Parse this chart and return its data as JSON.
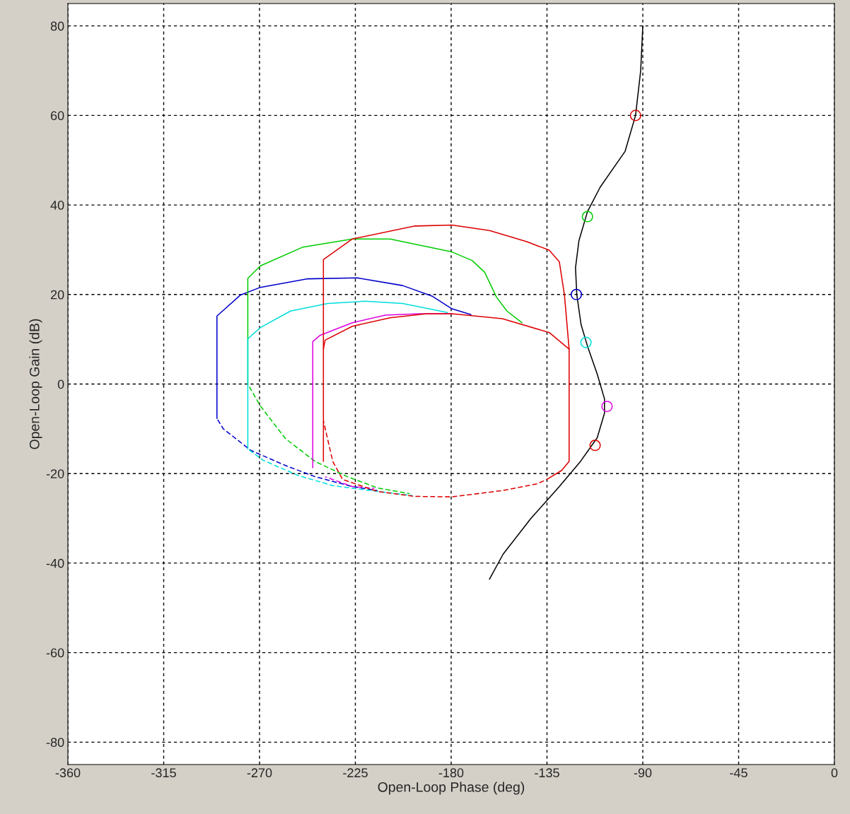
{
  "chart_data": {
    "type": "line",
    "xlabel": "Open-Loop Phase (deg)",
    "ylabel": "Open-Loop Gain (dB)",
    "xlim": [
      -360,
      0
    ],
    "ylim": [
      -85,
      85
    ],
    "xticks": [
      -360,
      -315,
      -270,
      -225,
      -180,
      -135,
      -90,
      -45,
      0
    ],
    "yticks": [
      -80,
      -60,
      -40,
      -20,
      0,
      20,
      40,
      60,
      80
    ],
    "grid": true,
    "legend": false,
    "series": [
      {
        "color": "#000000",
        "line_style": "solid",
        "marker": "none",
        "x": [
          -90,
          -91,
          -93.4,
          -98.3,
          -110,
          -116,
          -120,
          -121.6,
          -121,
          -119,
          -116,
          -111.4,
          -108,
          -108,
          -111.4,
          -119.6,
          -129.4,
          -142.5,
          -155.6,
          -162
        ],
        "values": [
          80,
          70,
          60,
          52,
          44,
          38.5,
          32,
          26,
          20,
          13.3,
          8.5,
          2.2,
          -3.3,
          -6.5,
          -12,
          -17.5,
          -23,
          -30,
          -38,
          -43.6
        ]
      },
      {
        "color": "#0000cc",
        "line_style": "solid",
        "marker": "none",
        "x": [
          -290,
          -290,
          -278.9,
          -269.6,
          -247.3,
          -224,
          -202.8,
          -188.8,
          -179.6,
          -170.7
        ],
        "values": [
          -7.7,
          15.2,
          19.9,
          21.6,
          23.5,
          23.7,
          22,
          19.6,
          16.8,
          15.5
        ]
      },
      {
        "color": "#0000cc",
        "line_style": "dashed",
        "marker": "none",
        "x": [
          -290,
          -287,
          -274.2,
          -257.8,
          -243.9,
          -226.4,
          -214.6
        ],
        "values": [
          -7.7,
          -10,
          -14.8,
          -18.2,
          -20.7,
          -22.9,
          -23.8
        ]
      },
      {
        "color": "#00cc00",
        "line_style": "solid",
        "marker": "none",
        "x": [
          -275.5,
          -275.5,
          -269.6,
          -249.6,
          -226.4,
          -208.7,
          -179.6,
          -170.2,
          -164.3,
          -158.7,
          -153.8,
          -146.8
        ],
        "values": [
          0,
          23.6,
          26.4,
          30.6,
          32.4,
          32.4,
          29.5,
          27.6,
          25,
          19.4,
          16.3,
          13.7
        ]
      },
      {
        "color": "#00cc00",
        "line_style": "dashed",
        "marker": "none",
        "x": [
          -275.5,
          -269.6,
          -257.8,
          -243.9,
          -228.7,
          -214.6,
          -199.5
        ],
        "values": [
          0,
          -4.9,
          -12.2,
          -17.3,
          -20.7,
          -23.2,
          -24.5
        ]
      },
      {
        "color": "#00dddd",
        "line_style": "solid",
        "marker": "none",
        "x": [
          -275.5,
          -275.5,
          -269.6,
          -255.5,
          -238,
          -220.5,
          -202.8,
          -181.8
        ],
        "values": [
          -14.5,
          10.1,
          12.6,
          16.3,
          18,
          18.5,
          18,
          16
        ]
      },
      {
        "color": "#00dddd",
        "line_style": "dashed",
        "marker": "none",
        "x": [
          -275.5,
          -268.4,
          -252,
          -235.6,
          -214.6,
          -198.2
        ],
        "values": [
          -14.5,
          -17,
          -20.4,
          -22.7,
          -24,
          -24.9
        ]
      },
      {
        "color": "#dd00dd",
        "line_style": "solid",
        "marker": "none",
        "x": [
          -245,
          -245,
          -241.5,
          -226.4,
          -211,
          -194.7,
          -179.6
        ],
        "values": [
          -18.7,
          9.5,
          10.9,
          13.7,
          15.4,
          15.7,
          15.7
        ]
      },
      {
        "color": "#dd00dd",
        "line_style": "dashed",
        "marker": "none",
        "x": [
          -239.2,
          -226.4,
          -216
        ],
        "values": [
          -20.7,
          -22.9,
          -23.3
        ]
      },
      {
        "color": "#dd0000",
        "line_style": "solid",
        "marker": "none",
        "x": [
          -240,
          -240,
          -226.4,
          -197,
          -179.6,
          -162,
          -144.5,
          -134,
          -129.2,
          -126.8,
          -124.6,
          -124.6,
          -128.1,
          -135
        ],
        "values": [
          -17.3,
          27.8,
          32.4,
          35.3,
          35.5,
          34.3,
          31.8,
          29.9,
          27.3,
          19.9,
          7.8,
          -17.3,
          -19.3,
          -21.3
        ]
      },
      {
        "color": "#dd0000",
        "line_style": "dashed",
        "marker": "none",
        "x": [
          -135,
          -139.7,
          -156,
          -179.6,
          -197,
          -214.6,
          -231,
          -235.6,
          -240
        ],
        "values": [
          -21.3,
          -22.3,
          -23.8,
          -25.2,
          -25.1,
          -24,
          -21.3,
          -17.3,
          -8.2
        ]
      },
      {
        "color": "#dd0000",
        "line_style": "solid",
        "marker": "none",
        "x": [
          -240,
          -239.2,
          -226.4,
          -208.7,
          -191.4,
          -179.6,
          -156,
          -133.9,
          -124.6
        ],
        "values": [
          7.8,
          9.8,
          12.9,
          14.8,
          15.7,
          15.7,
          14.6,
          11.5,
          7.8
        ]
      },
      {
        "type": "scatter",
        "color": "#dd0000",
        "marker": "circle",
        "x": [
          -93.4
        ],
        "values": [
          60
        ]
      },
      {
        "type": "scatter",
        "color": "#00cc00",
        "marker": "circle",
        "x": [
          -116
        ],
        "values": [
          37.4
        ]
      },
      {
        "type": "scatter",
        "color": "#0000cc",
        "marker": "circle",
        "x": [
          -121.2
        ],
        "values": [
          20
        ]
      },
      {
        "type": "scatter",
        "color": "#00dddd",
        "marker": "circle",
        "x": [
          -116.7
        ],
        "values": [
          9.3
        ]
      },
      {
        "type": "scatter",
        "color": "#dd00dd",
        "marker": "circle",
        "x": [
          -106.8
        ],
        "values": [
          -5
        ]
      },
      {
        "type": "scatter",
        "color": "#dd0000",
        "marker": "circle",
        "x": [
          -112.4
        ],
        "values": [
          -13.7
        ]
      }
    ]
  }
}
